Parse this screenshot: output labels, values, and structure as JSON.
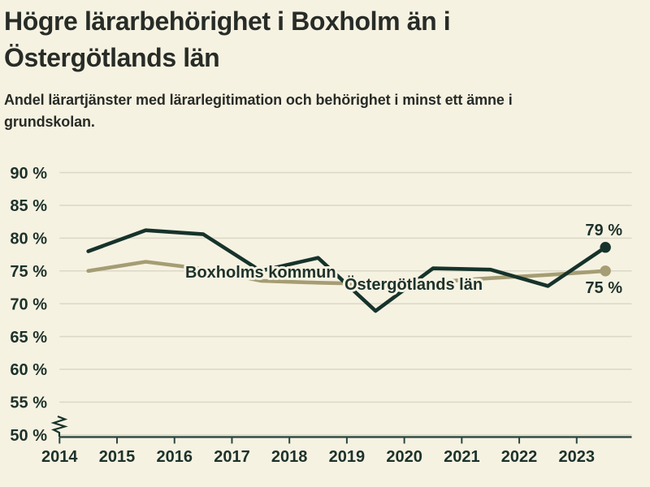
{
  "header": {
    "title_lines": [
      "Högre lärarbehörighet i Boxholm än i",
      "Östergötlands län"
    ],
    "subtitle_lines": [
      "Andel lärartjänster med lärarlegitimation och behörighet i minst ett ämne i",
      "grundskolan."
    ]
  },
  "colors": {
    "background": "#f6f2e2",
    "title_text": "#282c27",
    "grid": "#dbd8c8",
    "axis": "#2a473f",
    "tick_text": "#1d322b",
    "series_boxholm": "#16332b",
    "series_ostergotland": "#a59d73",
    "label_ostergotland": "#9e9567"
  },
  "chart_data": {
    "type": "line",
    "title": "Högre lärarbehörighet i Boxholm än i Östergötlands län",
    "subtitle": "Andel lärartjänster med lärarlegitimation och behörighet i minst ett ämne i grundskolan.",
    "x": [
      2014,
      2015,
      2016,
      2017,
      2018,
      2019,
      2020,
      2021,
      2022,
      2023
    ],
    "x_tick_labels": [
      "2014",
      "2015",
      "2016",
      "2017",
      "2018",
      "2019",
      "2020",
      "2021",
      "2022",
      "2023"
    ],
    "y_ticks": [
      90,
      85,
      80,
      75,
      70,
      65,
      60,
      55,
      50
    ],
    "y_tick_labels": [
      "90 %",
      "85 %",
      "80 %",
      "75 %",
      "70 %",
      "65 %",
      "60 %",
      "55 %",
      "50 %"
    ],
    "ylim": [
      50,
      92.5
    ],
    "ylabel": "",
    "xlabel": "",
    "grid": "horizontal",
    "axis_break_at_50": true,
    "legend_position": "inline-labels",
    "series": [
      {
        "name": "Boxholms kommun",
        "values": [
          78.0,
          81.2,
          80.6,
          75.0,
          77.0,
          68.9,
          75.4,
          75.2,
          72.7,
          78.6
        ],
        "end_label": "79 %",
        "end_dot": true
      },
      {
        "name": "Östergötlands län",
        "values": [
          75.0,
          76.4,
          75.3,
          73.5,
          73.2,
          73.0,
          73.3,
          73.9,
          74.4,
          75.0
        ],
        "end_label": "75 %",
        "end_dot": true
      }
    ]
  }
}
